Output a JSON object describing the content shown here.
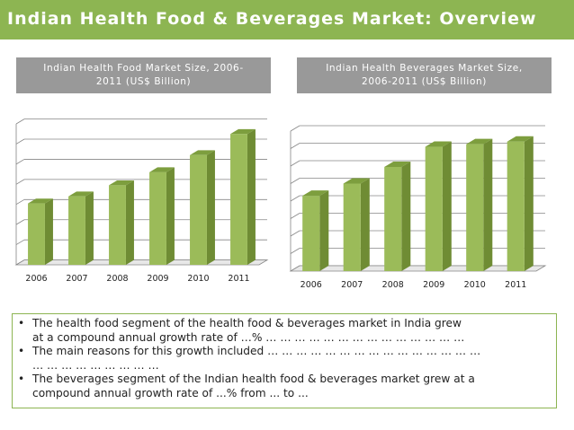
{
  "slide": {
    "title": "Indian Health Food & Beverages Market: Overview"
  },
  "charts": {
    "left": {
      "header_line1": "Indian Health Food Market Size, 2006-",
      "header_line2": "2011 (US$ Billion)"
    },
    "right": {
      "header_line1": "Indian Health Beverages Market Size,",
      "header_line2": "2006-2011 (US$ Billion)"
    }
  },
  "colors": {
    "bar_front": "#9bbb59",
    "bar_side": "#6f8c34",
    "bar_top": "#7d9e3e",
    "title_bg": "#8db552",
    "header_bg": "#999999",
    "grid": "#868686"
  },
  "chart_data": [
    {
      "type": "bar",
      "title": "Indian Health Food Market Size, 2006-2011 (US$ Billion)",
      "categories": [
        "2006",
        "2007",
        "2008",
        "2009",
        "2010",
        "2011"
      ],
      "values": [
        3.05,
        3.4,
        3.95,
        4.6,
        5.45,
        6.5
      ],
      "ylim": [
        0,
        7
      ],
      "grid": true,
      "style": "3d-column"
    },
    {
      "type": "bar",
      "title": "Indian Health Beverages Market Size, 2006-2011 (US$ Billion)",
      "categories": [
        "2006",
        "2007",
        "2008",
        "2009",
        "2010",
        "2011"
      ],
      "values": [
        4.3,
        5.0,
        5.95,
        7.1,
        7.25,
        7.4
      ],
      "ylim": [
        0,
        8
      ],
      "grid": true,
      "style": "3d-column"
    }
  ],
  "bullets": [
    {
      "marker": "•",
      "line1": "The health food segment of the health food & beverages market in India grew",
      "line2": "at a compound annual growth rate of …% … … … … … … … … … … … … … …"
    },
    {
      "marker": "•",
      "line1": "The main reasons for this growth included … … … … … … … … … … … … … … …",
      "line2": "… … … … … … … … …"
    },
    {
      "marker": "•",
      "line1": "The beverages segment of the Indian health food & beverages market grew at a",
      "line2": "compound annual growth rate of ...% from ... to ..."
    }
  ]
}
